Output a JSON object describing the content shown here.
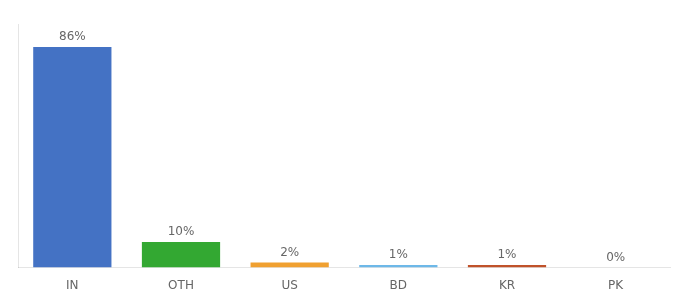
{
  "chart_data": {
    "type": "bar",
    "categories": [
      "IN",
      "OTH",
      "US",
      "BD",
      "KR",
      "PK"
    ],
    "values": [
      86,
      10,
      2,
      1,
      1,
      0
    ],
    "value_labels": [
      "86%",
      "10%",
      "2%",
      "1%",
      "1%",
      "0%"
    ],
    "colors": [
      "#4472c4",
      "#33a832",
      "#f0a030",
      "#6db8e8",
      "#c0522a",
      "#c0522a"
    ],
    "ylim": [
      0,
      95
    ],
    "grid": false,
    "data_labels": true,
    "tick_labels": "x"
  }
}
